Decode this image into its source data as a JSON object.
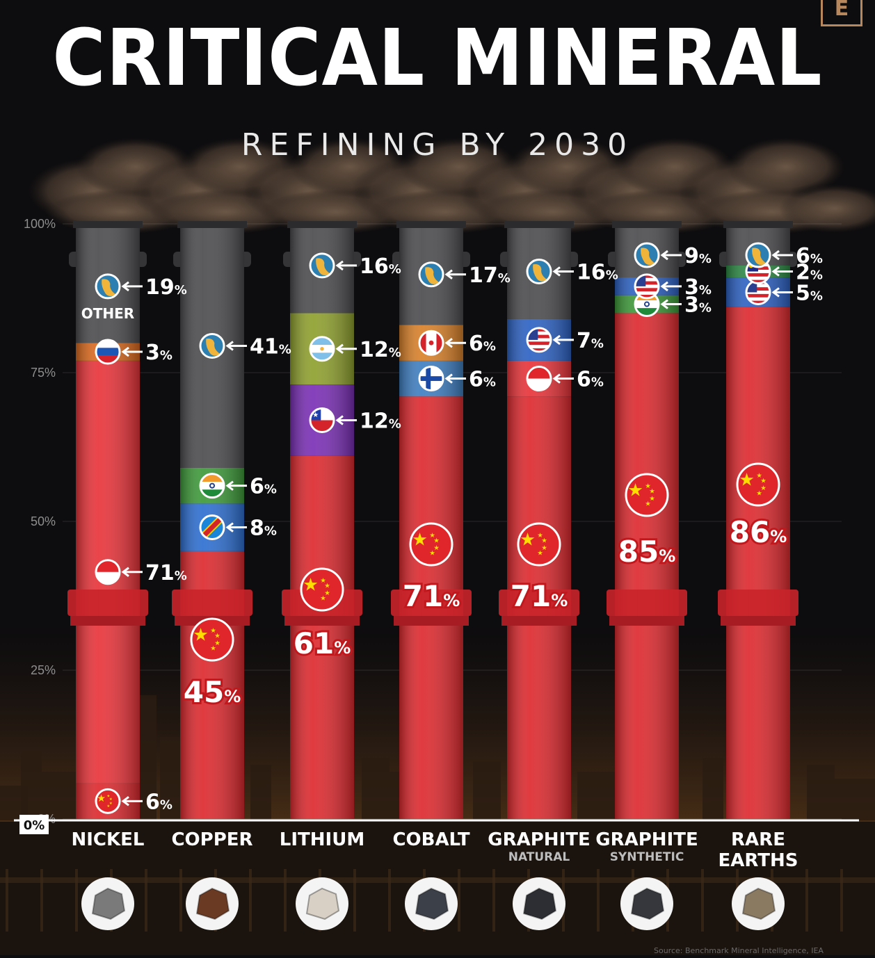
{
  "title": "CRITICAL MINERAL",
  "subtitle": "REFINING BY 2030",
  "logo_letter": "E",
  "other_label": "OTHER",
  "source_text": "Source: Benchmark Mineral Intelligence, IEA",
  "colors": {
    "china": "#dd2a2f",
    "other": "#4c4c4f",
    "indonesia": "#e8343a",
    "russia": "#dc6a1e",
    "india": "#3e9a3a",
    "drc": "#2e6fd1",
    "argentina": "#8fa02e",
    "chile": "#7a2fb5",
    "canada": "#d9812a",
    "finland": "#3f7fc2",
    "usa": "#2d62c4",
    "malaysia": "#2d8a45"
  },
  "chart_data": {
    "type": "bar",
    "stacked": true,
    "title": "CRITICAL MINERAL",
    "subtitle": "REFINING BY 2030",
    "ylim": [
      0,
      100
    ],
    "yticks": [
      "0%",
      "25%",
      "50%",
      "75%",
      "100%"
    ],
    "categories": [
      {
        "label": "NICKEL",
        "sublabel": ""
      },
      {
        "label": "COPPER",
        "sublabel": ""
      },
      {
        "label": "LITHIUM",
        "sublabel": ""
      },
      {
        "label": "COBALT",
        "sublabel": ""
      },
      {
        "label": "GRAPHITE",
        "sublabel": "NATURAL"
      },
      {
        "label": "GRAPHITE",
        "sublabel": "SYNTHETIC"
      },
      {
        "label": "RARE",
        "sublabel": "EARTHS"
      }
    ],
    "stacks": [
      {
        "category": "NICKEL",
        "segments": [
          {
            "country": "china",
            "value": 6,
            "label": "6",
            "unit": "%"
          },
          {
            "country": "indonesia",
            "value": 71,
            "label": "71",
            "unit": "%"
          },
          {
            "country": "russia",
            "value": 3,
            "label": "3",
            "unit": "%"
          },
          {
            "country": "other",
            "value": 19,
            "label": "19",
            "unit": "%"
          }
        ]
      },
      {
        "category": "COPPER",
        "segments": [
          {
            "country": "china",
            "value": 45,
            "label": "45",
            "unit": "%"
          },
          {
            "country": "drc",
            "value": 8,
            "label": "8",
            "unit": "%"
          },
          {
            "country": "india",
            "value": 6,
            "label": "6",
            "unit": "%"
          },
          {
            "country": "other",
            "value": 41,
            "label": "41",
            "unit": "%"
          }
        ]
      },
      {
        "category": "LITHIUM",
        "segments": [
          {
            "country": "china",
            "value": 61,
            "label": "61",
            "unit": "%"
          },
          {
            "country": "chile",
            "value": 12,
            "label": "12",
            "unit": "%"
          },
          {
            "country": "argentina",
            "value": 12,
            "label": "12",
            "unit": "%"
          },
          {
            "country": "other",
            "value": 16,
            "label": "16",
            "unit": "%"
          }
        ]
      },
      {
        "category": "COBALT",
        "segments": [
          {
            "country": "china",
            "value": 71,
            "label": "71",
            "unit": "%"
          },
          {
            "country": "finland",
            "value": 6,
            "label": "6",
            "unit": "%"
          },
          {
            "country": "canada",
            "value": 6,
            "label": "6",
            "unit": "%"
          },
          {
            "country": "other",
            "value": 17,
            "label": "17",
            "unit": "%"
          }
        ]
      },
      {
        "category": "GRAPHITE NATURAL",
        "segments": [
          {
            "country": "china",
            "value": 71,
            "label": "71",
            "unit": "%"
          },
          {
            "country": "indonesia",
            "value": 6,
            "label": "6",
            "unit": "%"
          },
          {
            "country": "usa",
            "value": 7,
            "label": "7",
            "unit": "%"
          },
          {
            "country": "other",
            "value": 16,
            "label": "16",
            "unit": "%"
          }
        ]
      },
      {
        "category": "GRAPHITE SYNTHETIC",
        "segments": [
          {
            "country": "china",
            "value": 85,
            "label": "85",
            "unit": "%"
          },
          {
            "country": "india",
            "value": 3,
            "label": "3",
            "unit": "%"
          },
          {
            "country": "usa",
            "value": 3,
            "label": "3",
            "unit": "%"
          },
          {
            "country": "other",
            "value": 9,
            "label": "9",
            "unit": "%"
          }
        ]
      },
      {
        "category": "RARE EARTHS",
        "segments": [
          {
            "country": "china",
            "value": 86,
            "label": "86",
            "unit": "%"
          },
          {
            "country": "usa",
            "value": 5,
            "label": "5",
            "unit": "%"
          },
          {
            "country": "malaysia",
            "value": 2,
            "label": "2",
            "unit": "%"
          },
          {
            "country": "other",
            "value": 6,
            "label": "6",
            "unit": "%"
          }
        ]
      }
    ]
  }
}
